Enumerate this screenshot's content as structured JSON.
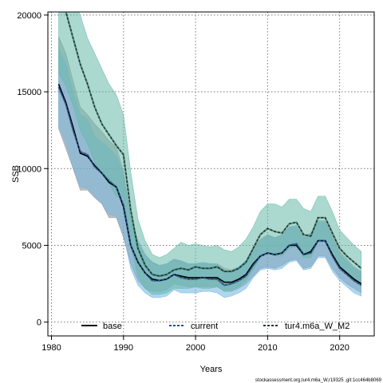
{
  "chart_data": {
    "type": "line",
    "title": "",
    "xlabel": "Years",
    "ylabel": "SSB",
    "xlim": [
      1979.5,
      2024.8
    ],
    "ylim": [
      -900,
      20200
    ],
    "x_ticks": [
      1980,
      1990,
      2000,
      2010,
      2020
    ],
    "y_ticks": [
      0,
      5000,
      10000,
      15000,
      20000
    ],
    "grid": true,
    "legend_position": "bottom",
    "footnote": "stockassessment.org,tur4.m6a_W,r19325 ,git:1cc464b8069",
    "x": [
      1981,
      1982,
      1983,
      1984,
      1985,
      1986,
      1987,
      1988,
      1989,
      1990,
      1991,
      1992,
      1993,
      1994,
      1995,
      1996,
      1997,
      1998,
      1999,
      2000,
      2001,
      2002,
      2003,
      2004,
      2005,
      2006,
      2007,
      2008,
      2009,
      2010,
      2011,
      2012,
      2013,
      2014,
      2015,
      2016,
      2017,
      2018,
      2019,
      2020,
      2021,
      2022,
      2023
    ],
    "series": [
      {
        "name": "base",
        "color": "#000000",
        "fill": "#8c8c8c",
        "values": [
          15500,
          14300,
          12700,
          11000,
          10800,
          10200,
          9700,
          9100,
          8800,
          7500,
          5000,
          3900,
          3200,
          2800,
          2700,
          2800,
          3100,
          3000,
          2900,
          2900,
          2900,
          2900,
          2900,
          2600,
          2600,
          2800,
          3100,
          3800,
          4300,
          4500,
          4400,
          4500,
          5000,
          5000,
          4400,
          4600,
          5300,
          5300,
          4400,
          3600,
          3200,
          2800,
          2500
        ],
        "lower": [
          12600,
          11300,
          10000,
          8600,
          8600,
          8100,
          7700,
          6800,
          6800,
          5500,
          3800,
          2700,
          2200,
          2000,
          2000,
          2100,
          2500,
          2400,
          2300,
          2300,
          2300,
          2300,
          2300,
          2000,
          2000,
          2200,
          2500,
          3000,
          3500,
          3600,
          3500,
          3700,
          4000,
          4100,
          3500,
          3600,
          4300,
          4300,
          3500,
          2900,
          2500,
          2200,
          1900
        ],
        "upper": [
          18600,
          17500,
          15700,
          14000,
          13500,
          12900,
          12400,
          11800,
          11400,
          9800,
          6800,
          5300,
          4400,
          3900,
          3700,
          3800,
          4100,
          4000,
          3800,
          3800,
          3800,
          3800,
          3800,
          3500,
          3400,
          3600,
          4000,
          4800,
          5400,
          5700,
          5500,
          5700,
          6200,
          6200,
          5600,
          5800,
          6600,
          6600,
          5600,
          4600,
          4100,
          3600,
          3300
        ]
      },
      {
        "name": "current",
        "color": "#1f4e9c",
        "fill": "#6fb5e0",
        "values": [
          15300,
          14200,
          12500,
          11100,
          10900,
          10100,
          9700,
          9200,
          8800,
          7600,
          5000,
          3900,
          3200,
          2700,
          2700,
          2800,
          3100,
          2900,
          2800,
          2800,
          2900,
          2800,
          2800,
          2400,
          2500,
          2700,
          3000,
          3700,
          4300,
          4500,
          4400,
          4500,
          5000,
          5100,
          4400,
          4500,
          5300,
          5300,
          4300,
          3500,
          3100,
          2700,
          2400
        ],
        "lower": [
          12800,
          11600,
          10100,
          8800,
          8700,
          8200,
          7700,
          7000,
          6900,
          5700,
          3500,
          2400,
          1900,
          1600,
          1600,
          1700,
          2100,
          1900,
          1900,
          1900,
          2000,
          2000,
          1900,
          1600,
          1700,
          1900,
          2200,
          2900,
          3400,
          3500,
          3400,
          3500,
          3900,
          4000,
          3400,
          3500,
          4200,
          4200,
          3300,
          2700,
          2300,
          1900,
          1700
        ],
        "upper": [
          17800,
          16800,
          15000,
          13500,
          13200,
          12100,
          11700,
          11300,
          10800,
          9600,
          6600,
          5300,
          4400,
          3900,
          3700,
          3800,
          4100,
          3900,
          3800,
          3800,
          3900,
          3800,
          3700,
          3300,
          3300,
          3600,
          4000,
          4600,
          5300,
          5600,
          5500,
          5600,
          6200,
          6300,
          5500,
          5600,
          6500,
          6500,
          5400,
          4400,
          3900,
          3500,
          3200
        ]
      },
      {
        "name": "tur4.m6a_W_M2",
        "color": "#0b3d2e",
        "fill": "#66b8a8",
        "values": [
          21000,
          20200,
          18500,
          16800,
          15500,
          14000,
          12900,
          12200,
          11500,
          10900,
          7300,
          4800,
          3700,
          3100,
          3000,
          3100,
          3400,
          3500,
          3400,
          3600,
          3500,
          3500,
          3600,
          3300,
          3300,
          3500,
          3900,
          4800,
          5700,
          6100,
          5900,
          5800,
          6400,
          6500,
          5700,
          5600,
          6800,
          6800,
          5800,
          4800,
          4300,
          3900,
          3500
        ],
        "lower": [
          16200,
          15400,
          14100,
          12500,
          11600,
          10400,
          9600,
          9000,
          8200,
          8100,
          5000,
          3000,
          2200,
          1800,
          1800,
          1900,
          2200,
          2200,
          2200,
          2300,
          2200,
          2200,
          2300,
          2000,
          2100,
          2300,
          2700,
          3400,
          4200,
          4500,
          4300,
          4300,
          4800,
          4900,
          4200,
          4200,
          5200,
          5200,
          4300,
          3500,
          3100,
          2700,
          2400
        ],
        "upper": [
          23000,
          22500,
          21000,
          20000,
          18500,
          17500,
          16500,
          15500,
          14800,
          13500,
          9800,
          6700,
          5300,
          4400,
          4200,
          4400,
          4800,
          5200,
          5000,
          5100,
          5000,
          4900,
          5000,
          4700,
          4600,
          4900,
          5400,
          6200,
          7200,
          7700,
          7700,
          7500,
          8000,
          8000,
          7400,
          7200,
          8200,
          8200,
          7200,
          6000,
          5500,
          5000,
          4600
        ]
      }
    ]
  }
}
